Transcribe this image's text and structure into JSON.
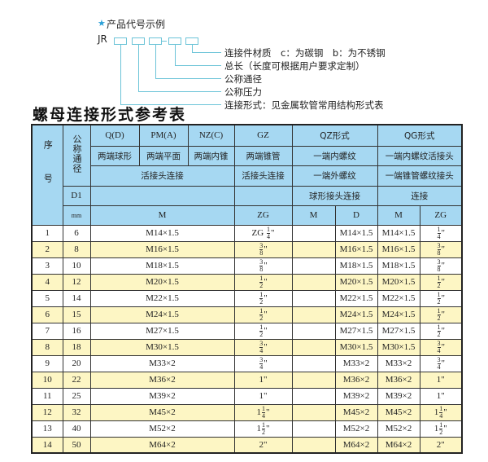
{
  "diagram": {
    "title": "产品代号示例",
    "code": "JR",
    "labels": [
      "连接件材质　c：为碳钢　b：为不锈钢",
      "总长（长度可根据用户要求定制）",
      "公称通径",
      "公称压力",
      "连接形式：见金属软管常用结构形式表"
    ]
  },
  "table_title": "螺母连接形式参考表",
  "header": {
    "seq": "序号",
    "dn": "公称通径",
    "qd": "Q(D)",
    "pm": "PM(A)",
    "nz": "NZ(C)",
    "gz": "GZ",
    "qz": "QZ形式",
    "qg": "QG形式",
    "qd2": "两端球形",
    "pm2": "两端平面",
    "nz2": "两端内锥",
    "gz2": "两端锥管",
    "qz2": "一端内螺纹",
    "qg2": "一端内螺纹活接头",
    "conn3": "活接头连接",
    "gz3": "活接头连接",
    "qz3": "一端外螺纹",
    "qg3": "一端锥管螺纹接头",
    "d1": "D1",
    "qz4": "球形接头连接",
    "qg4": "连接",
    "mm": "mm",
    "m": "M",
    "zg": "ZG",
    "qzm": "M",
    "qzd": "D",
    "qgm": "M",
    "qgzg": "ZG"
  },
  "rows": [
    {
      "seq": "1",
      "dn": "6",
      "m": "M14×1.5",
      "gz": {
        "pre": "ZG",
        "whole": "",
        "num": "1",
        "den": "4",
        "suf": "\""
      },
      "qz_m": "",
      "qz_d": "M14×1.5",
      "qg_m": "M14×1.5",
      "qg_zg": {
        "pre": "",
        "whole": "",
        "num": "1",
        "den": "4",
        "suf": "\""
      }
    },
    {
      "seq": "2",
      "dn": "8",
      "m": "M16×1.5",
      "gz": {
        "pre": "",
        "whole": "",
        "num": "3",
        "den": "8",
        "suf": "\""
      },
      "qz_m": "",
      "qz_d": "M16×1.5",
      "qg_m": "M16×1.5",
      "qg_zg": {
        "pre": "",
        "whole": "",
        "num": "3",
        "den": "8",
        "suf": "\""
      }
    },
    {
      "seq": "3",
      "dn": "10",
      "m": "M18×1.5",
      "gz": {
        "pre": "",
        "whole": "",
        "num": "3",
        "den": "8",
        "suf": "\""
      },
      "qz_m": "",
      "qz_d": "M18×1.5",
      "qg_m": "M18×1.5",
      "qg_zg": {
        "pre": "",
        "whole": "",
        "num": "3",
        "den": "8",
        "suf": "\""
      }
    },
    {
      "seq": "4",
      "dn": "12",
      "m": "M20×1.5",
      "gz": {
        "pre": "",
        "whole": "",
        "num": "1",
        "den": "2",
        "suf": "\""
      },
      "qz_m": "",
      "qz_d": "M20×1.5",
      "qg_m": "M20×1.5",
      "qg_zg": {
        "pre": "",
        "whole": "",
        "num": "1",
        "den": "2",
        "suf": "\""
      }
    },
    {
      "seq": "5",
      "dn": "14",
      "m": "M22×1.5",
      "gz": {
        "pre": "",
        "whole": "",
        "num": "1",
        "den": "2",
        "suf": "\""
      },
      "qz_m": "",
      "qz_d": "M22×1.5",
      "qg_m": "M22×1.5",
      "qg_zg": {
        "pre": "",
        "whole": "",
        "num": "1",
        "den": "2",
        "suf": "\""
      }
    },
    {
      "seq": "6",
      "dn": "15",
      "m": "M24×1.5",
      "gz": {
        "pre": "",
        "whole": "",
        "num": "1",
        "den": "2",
        "suf": "\""
      },
      "qz_m": "",
      "qz_d": "M24×1.5",
      "qg_m": "M24×1.5",
      "qg_zg": {
        "pre": "",
        "whole": "",
        "num": "1",
        "den": "2",
        "suf": "\""
      }
    },
    {
      "seq": "7",
      "dn": "16",
      "m": "M27×1.5",
      "gz": {
        "pre": "",
        "whole": "",
        "num": "1",
        "den": "2",
        "suf": "\""
      },
      "qz_m": "",
      "qz_d": "M27×1.5",
      "qg_m": "M27×1.5",
      "qg_zg": {
        "pre": "",
        "whole": "",
        "num": "1",
        "den": "2",
        "suf": "\""
      }
    },
    {
      "seq": "8",
      "dn": "18",
      "m": "M30×1.5",
      "gz": {
        "pre": "",
        "whole": "",
        "num": "3",
        "den": "4",
        "suf": "\""
      },
      "qz_m": "",
      "qz_d": "M30×1.5",
      "qg_m": "M30×1.5",
      "qg_zg": {
        "pre": "",
        "whole": "",
        "num": "3",
        "den": "4",
        "suf": "\""
      }
    },
    {
      "seq": "9",
      "dn": "20",
      "m": "M33×2",
      "gz": {
        "pre": "",
        "whole": "",
        "num": "3",
        "den": "4",
        "suf": "\""
      },
      "qz_m": "",
      "qz_d": "M33×2",
      "qg_m": "M33×2",
      "qg_zg": {
        "pre": "",
        "whole": "",
        "num": "3",
        "den": "4",
        "suf": "\""
      }
    },
    {
      "seq": "10",
      "dn": "22",
      "m": "M36×2",
      "gz": {
        "pre": "",
        "whole": "1",
        "num": "",
        "den": "",
        "suf": "\""
      },
      "qz_m": "",
      "qz_d": "M36×2",
      "qg_m": "M36×2",
      "qg_zg": {
        "pre": "",
        "whole": "1",
        "num": "",
        "den": "",
        "suf": "\""
      }
    },
    {
      "seq": "11",
      "dn": "25",
      "m": "M39×2",
      "gz": {
        "pre": "",
        "whole": "1",
        "num": "",
        "den": "",
        "suf": "\""
      },
      "qz_m": "",
      "qz_d": "M39×2",
      "qg_m": "M39×2",
      "qg_zg": {
        "pre": "",
        "whole": "1",
        "num": "",
        "den": "",
        "suf": "\""
      }
    },
    {
      "seq": "12",
      "dn": "32",
      "m": "M45×2",
      "gz": {
        "pre": "",
        "whole": "1",
        "num": "1",
        "den": "4",
        "suf": "\""
      },
      "qz_m": "",
      "qz_d": "M45×2",
      "qg_m": "M45×2",
      "qg_zg": {
        "pre": "",
        "whole": "1",
        "num": "1",
        "den": "4",
        "suf": "\""
      }
    },
    {
      "seq": "13",
      "dn": "40",
      "m": "M52×2",
      "gz": {
        "pre": "",
        "whole": "1",
        "num": "1",
        "den": "2",
        "suf": "\""
      },
      "qz_m": "",
      "qz_d": "M52×2",
      "qg_m": "M52×2",
      "qg_zg": {
        "pre": "",
        "whole": "1",
        "num": "1",
        "den": "2",
        "suf": "\""
      }
    },
    {
      "seq": "14",
      "dn": "50",
      "m": "M64×2",
      "gz": {
        "pre": "",
        "whole": "2",
        "num": "",
        "den": "",
        "suf": "\""
      },
      "qz_m": "",
      "qz_d": "M64×2",
      "qg_m": "M64×2",
      "qg_zg": {
        "pre": "",
        "whole": "2",
        "num": "",
        "den": "",
        "suf": "\""
      }
    }
  ],
  "colors": {
    "header_bg": "#a6d8f2",
    "alt_row_bg": "#fdf6c4",
    "accent": "#2aa0d8",
    "line": "#6cc4d8"
  }
}
